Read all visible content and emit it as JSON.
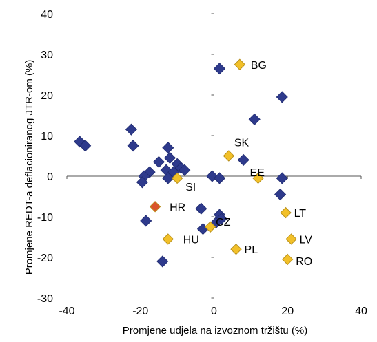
{
  "chart_data": {
    "type": "scatter",
    "xlabel": "Promjene udjela na izvoznom tržištu (%)",
    "ylabel": "Promjene REDT-a deflacioniranog JTR-om (%)",
    "xlim": [
      -40,
      40
    ],
    "ylim": [
      -30,
      40
    ],
    "xticks": [
      "-40",
      "-20",
      "0",
      "20",
      "40"
    ],
    "yticks": [
      "40",
      "30",
      "20",
      "10",
      "0",
      "-10",
      "-20",
      "-30"
    ],
    "xtick_values": [
      -40,
      -20,
      0,
      20,
      40
    ],
    "ytick_values": [
      40,
      30,
      20,
      10,
      0,
      -10,
      -20,
      -30
    ],
    "grid": false,
    "colors": {
      "other": "#2e3a8c",
      "highlight": "#f2c029",
      "croatia": "#d9542a"
    },
    "series": [
      {
        "group": "other",
        "points": [
          {
            "x": 1.5,
            "y": 26.5
          },
          {
            "x": 18.5,
            "y": 19.5
          },
          {
            "x": 11,
            "y": 14
          },
          {
            "x": 8,
            "y": 4
          },
          {
            "x": 18,
            "y": -4.5
          },
          {
            "x": 18.5,
            "y": -0.5
          },
          {
            "x": -36.5,
            "y": 8.5
          },
          {
            "x": -35,
            "y": 7.5
          },
          {
            "x": -22.5,
            "y": 11.5
          },
          {
            "x": -22,
            "y": 7.5
          },
          {
            "x": -12.5,
            "y": 7
          },
          {
            "x": -12,
            "y": 4.5
          },
          {
            "x": -15,
            "y": 3.5
          },
          {
            "x": -10,
            "y": 3
          },
          {
            "x": -9,
            "y": 2
          },
          {
            "x": -8,
            "y": 1.5
          },
          {
            "x": -13,
            "y": 1.5
          },
          {
            "x": -11,
            "y": 1
          },
          {
            "x": -17.5,
            "y": 1
          },
          {
            "x": -19,
            "y": 0
          },
          {
            "x": -19.5,
            "y": -1.5
          },
          {
            "x": -12.5,
            "y": -0.5
          },
          {
            "x": -0.5,
            "y": 0
          },
          {
            "x": 1.5,
            "y": -0.5
          },
          {
            "x": -3.5,
            "y": -8
          },
          {
            "x": 1.5,
            "y": -9.5
          },
          {
            "x": 2,
            "y": -10.5
          },
          {
            "x": 0.5,
            "y": -11.5
          },
          {
            "x": -3,
            "y": -13
          },
          {
            "x": -18.5,
            "y": -11
          },
          {
            "x": -14,
            "y": -21
          }
        ]
      },
      {
        "group": "highlight",
        "points": [
          {
            "x": 7,
            "y": 27.5,
            "label": "BG"
          },
          {
            "x": 4,
            "y": 5,
            "label": "SK"
          },
          {
            "x": -10,
            "y": -0.5,
            "label": "SI"
          },
          {
            "x": 12,
            "y": -0.5,
            "label": "EE"
          },
          {
            "x": 19.5,
            "y": -9,
            "label": "LT"
          },
          {
            "x": -1,
            "y": -12.5,
            "label": "CZ"
          },
          {
            "x": -12.5,
            "y": -15.5,
            "label": "HU"
          },
          {
            "x": 21,
            "y": -15.5,
            "label": "LV"
          },
          {
            "x": 6,
            "y": -18,
            "label": "PL"
          },
          {
            "x": 20,
            "y": -20.5,
            "label": "RO"
          }
        ]
      },
      {
        "group": "croatia",
        "points": [
          {
            "x": -16,
            "y": -7.5,
            "label": "HR"
          }
        ]
      }
    ]
  }
}
